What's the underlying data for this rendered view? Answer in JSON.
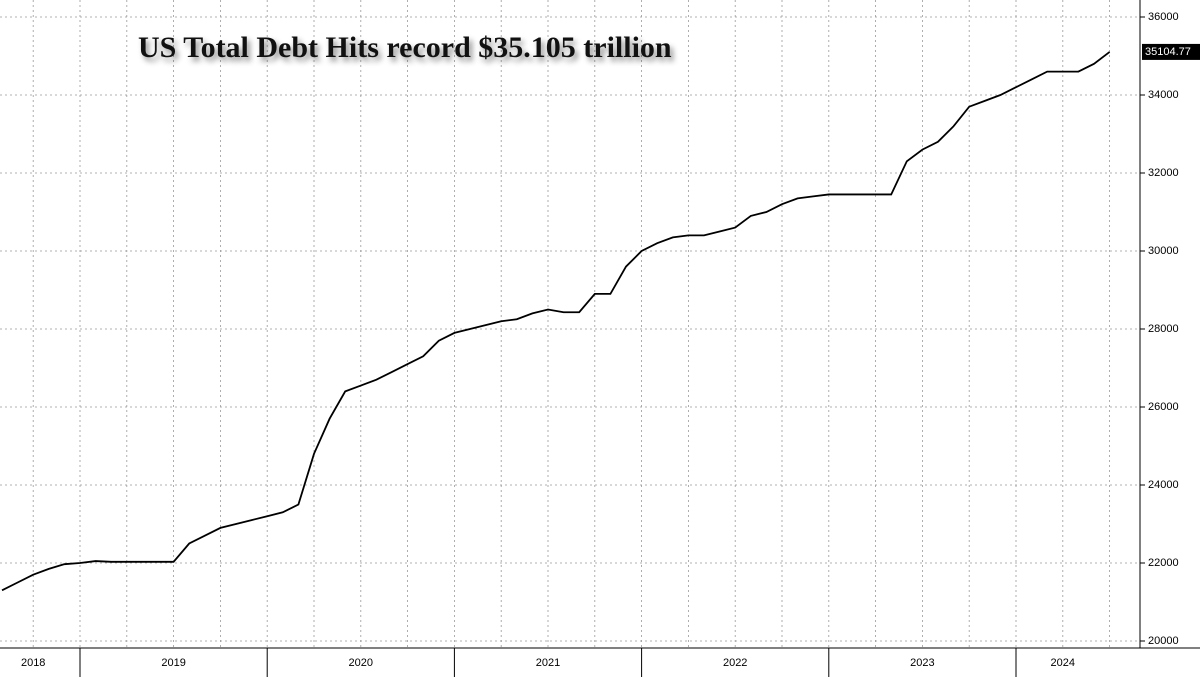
{
  "chart_data": {
    "type": "line",
    "title": "US Total Debt Hits record $35.105 trillion",
    "categories": [
      null,
      null,
      "2018",
      null,
      null,
      null,
      null,
      null,
      null,
      null,
      null,
      "2019",
      null,
      null,
      null,
      null,
      null,
      null,
      null,
      null,
      null,
      null,
      null,
      "2020",
      null,
      null,
      null,
      null,
      null,
      null,
      null,
      null,
      null,
      null,
      null,
      "2021",
      null,
      null,
      null,
      null,
      null,
      null,
      null,
      null,
      null,
      null,
      null,
      "2022",
      null,
      null,
      null,
      null,
      null,
      null,
      null,
      null,
      null,
      null,
      null,
      "2023",
      null,
      null,
      null,
      null,
      null,
      null,
      null,
      null,
      "2024",
      null,
      null,
      null
    ],
    "series": [
      {
        "name": "US Total Debt",
        "color": "#000000",
        "values": [
          21300,
          21500,
          21700,
          21850,
          21970,
          22000,
          22050,
          22030,
          22030,
          22030,
          22030,
          22030,
          22500,
          22700,
          22900,
          23000,
          23100,
          23200,
          23300,
          23500,
          24800,
          25700,
          26400,
          26550,
          26700,
          26900,
          27100,
          27300,
          27700,
          27900,
          28000,
          28100,
          28200,
          28250,
          28400,
          28500,
          28430,
          28430,
          28900,
          28900,
          29600,
          30000,
          30200,
          30350,
          30400,
          30400,
          30500,
          30600,
          30900,
          31000,
          31200,
          31350,
          31400,
          31450,
          31450,
          31450,
          31450,
          31450,
          32300,
          32600,
          32800,
          33200,
          33700,
          33850,
          34000,
          34200,
          34400,
          34600,
          34600,
          34600,
          34800,
          35104.77
        ]
      }
    ],
    "ylim": [
      20000,
      36000
    ],
    "yticks": [
      20000,
      22000,
      24000,
      26000,
      28000,
      30000,
      32000,
      34000,
      36000
    ],
    "grid": true
  }
}
